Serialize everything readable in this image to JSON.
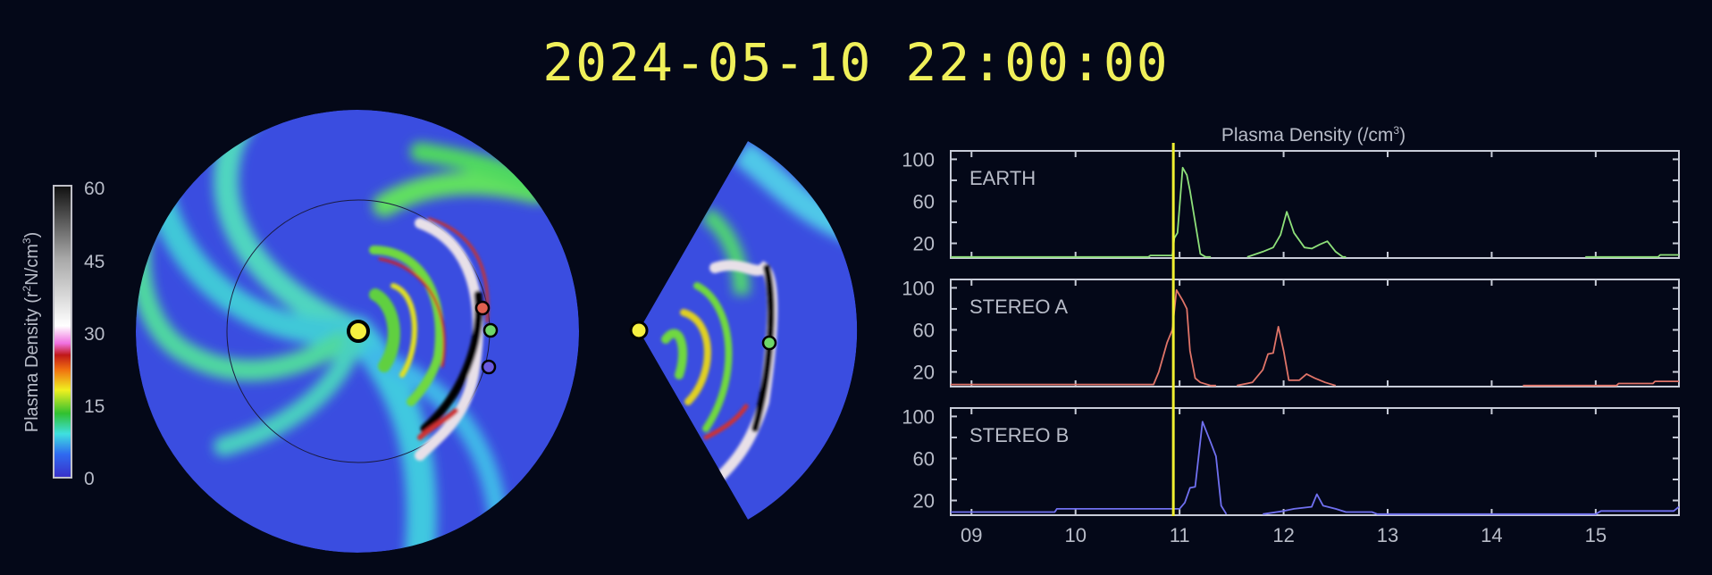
{
  "timestamp": "2024-05-10 22:00:00",
  "colorbar": {
    "title": "Plasma Density (r²N/cm³)",
    "title_main": "Plasma Density (r",
    "title_sup1": "2",
    "title_mid": "N/cm",
    "title_sup2": "3",
    "title_end": ")",
    "ticks": [
      "60",
      "45",
      "30",
      "15",
      "0"
    ],
    "colors": [
      "#3a2fc8",
      "#2f6af0",
      "#3fe0e0",
      "#30c030",
      "#f0f020",
      "#f07010",
      "#c01818",
      "#f070e0",
      "#ffffff",
      "#a0a0a0",
      "#101010"
    ]
  },
  "markers": {
    "sun_color": "#f6f040",
    "earth_color": "#6ed66a",
    "stereo_a_color": "#e06050",
    "stereo_b_color": "#6a5ae0"
  },
  "chart_data": {
    "type": "line",
    "title": "Plasma Density (/cm³)",
    "title_main": "Plasma Density (/cm",
    "title_sup": "3",
    "title_end": ")",
    "xlim": [
      8.8,
      15.8
    ],
    "ylim": [
      6,
      108
    ],
    "x_ticks": [
      9,
      10,
      11,
      12,
      13,
      14,
      15
    ],
    "x_tick_labels": [
      "09",
      "10",
      "11",
      "12",
      "13",
      "14",
      "15"
    ],
    "y_tick_labels": [
      "100",
      "60",
      "20"
    ],
    "y_ticks": [
      100,
      60,
      20
    ],
    "y_minor_ticks": [
      80,
      40
    ],
    "current_time": 10.94,
    "current_time_color": "#f0f030",
    "grid": false,
    "series": [
      {
        "name": "EARTH",
        "color": "#8ee07a",
        "points": [
          [
            8.8,
            7
          ],
          [
            10.7,
            7
          ],
          [
            10.72,
            8.5
          ],
          [
            10.93,
            8.5
          ],
          [
            10.95,
            25
          ],
          [
            10.98,
            30
          ],
          [
            11.03,
            92
          ],
          [
            11.07,
            85
          ],
          [
            11.1,
            70
          ],
          [
            11.15,
            40
          ],
          [
            11.2,
            10
          ],
          [
            11.25,
            7
          ],
          [
            11.3,
            7
          ],
          null,
          [
            11.65,
            7
          ],
          [
            11.8,
            12
          ],
          [
            11.9,
            16
          ],
          [
            11.97,
            28
          ],
          [
            12.03,
            50
          ],
          [
            12.1,
            30
          ],
          [
            12.2,
            16
          ],
          [
            12.27,
            15
          ],
          [
            12.35,
            19
          ],
          [
            12.42,
            22
          ],
          [
            12.5,
            12
          ],
          [
            12.57,
            7
          ],
          [
            12.6,
            7
          ],
          null,
          [
            14.9,
            7
          ],
          [
            15.6,
            7
          ],
          [
            15.62,
            9
          ],
          [
            15.8,
            9
          ]
        ]
      },
      {
        "name": "STEREO A",
        "color": "#e07468",
        "points": [
          [
            8.8,
            8
          ],
          [
            10.75,
            8
          ],
          [
            10.8,
            20
          ],
          [
            10.88,
            48
          ],
          [
            10.93,
            60
          ],
          [
            10.97,
            98
          ],
          [
            11.0,
            93
          ],
          [
            11.03,
            88
          ],
          [
            11.07,
            80
          ],
          [
            11.1,
            40
          ],
          [
            11.15,
            14
          ],
          [
            11.2,
            10
          ],
          [
            11.3,
            7
          ],
          [
            11.35,
            7
          ],
          null,
          [
            11.55,
            7
          ],
          [
            11.7,
            10
          ],
          [
            11.8,
            22
          ],
          [
            11.85,
            37
          ],
          [
            11.9,
            38
          ],
          [
            11.95,
            63
          ],
          [
            12.0,
            40
          ],
          [
            12.05,
            12
          ],
          [
            12.15,
            12
          ],
          [
            12.22,
            18
          ],
          [
            12.3,
            14
          ],
          [
            12.4,
            10
          ],
          [
            12.5,
            7
          ],
          null,
          [
            14.3,
            7
          ],
          [
            15.2,
            7
          ],
          [
            15.22,
            9
          ],
          [
            15.55,
            9
          ],
          [
            15.57,
            11
          ],
          [
            15.8,
            11
          ]
        ]
      },
      {
        "name": "STEREO B",
        "color": "#7070f0",
        "points": [
          [
            8.8,
            9
          ],
          [
            9.8,
            9
          ],
          [
            9.82,
            12
          ],
          [
            10.92,
            12
          ],
          [
            11.0,
            12
          ],
          [
            11.05,
            18
          ],
          [
            11.1,
            32
          ],
          [
            11.15,
            33
          ],
          [
            11.22,
            95
          ],
          [
            11.3,
            75
          ],
          [
            11.35,
            62
          ],
          [
            11.4,
            15
          ],
          [
            11.45,
            7
          ],
          null,
          [
            11.8,
            7
          ],
          [
            12.0,
            10
          ],
          [
            12.1,
            12
          ],
          [
            12.27,
            14
          ],
          [
            12.32,
            26
          ],
          [
            12.38,
            15
          ],
          [
            12.5,
            12
          ],
          [
            12.6,
            9
          ],
          [
            12.85,
            9
          ],
          [
            12.9,
            7
          ],
          [
            15.0,
            7
          ],
          [
            15.05,
            10
          ],
          [
            15.75,
            10
          ],
          [
            15.8,
            14
          ]
        ]
      }
    ]
  }
}
